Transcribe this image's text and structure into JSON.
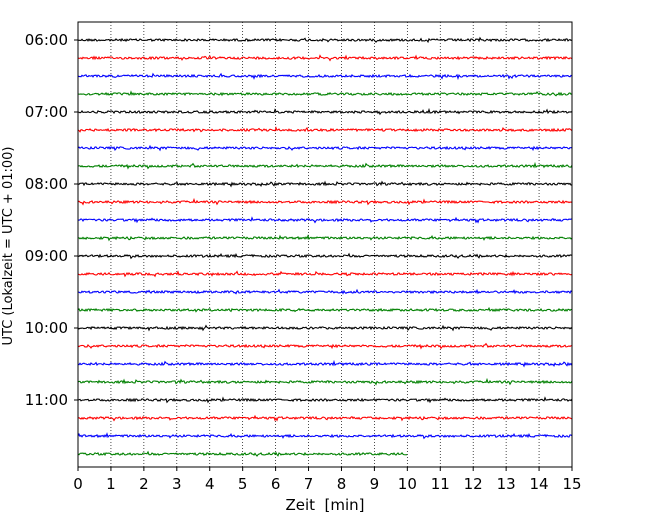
{
  "chart_data": {
    "type": "line",
    "title": "",
    "xlabel": "Zeit  [min]",
    "ylabel": "UTC (Lokalzeit = UTC + 01:00)",
    "xlim": [
      0,
      15
    ],
    "x_ticks": [
      "0",
      "1",
      "2",
      "3",
      "4",
      "5",
      "6",
      "7",
      "8",
      "9",
      "10",
      "11",
      "12",
      "13",
      "14",
      "15"
    ],
    "y_tick_labels": [
      "06:00",
      "07:00",
      "08:00",
      "09:00",
      "10:00",
      "11:00"
    ],
    "trace_interval_min": 15,
    "grid": "vertical-dotted",
    "colors": [
      "#000000",
      "#ff0000",
      "#0000ff",
      "#008000"
    ],
    "traces": [
      {
        "start": "06:00",
        "end_min": 15
      },
      {
        "start": "06:15",
        "end_min": 15
      },
      {
        "start": "06:30",
        "end_min": 15
      },
      {
        "start": "06:45",
        "end_min": 15
      },
      {
        "start": "07:00",
        "end_min": 15
      },
      {
        "start": "07:15",
        "end_min": 15
      },
      {
        "start": "07:30",
        "end_min": 15
      },
      {
        "start": "07:45",
        "end_min": 15
      },
      {
        "start": "08:00",
        "end_min": 15
      },
      {
        "start": "08:15",
        "end_min": 15
      },
      {
        "start": "08:30",
        "end_min": 15
      },
      {
        "start": "08:45",
        "end_min": 15
      },
      {
        "start": "09:00",
        "end_min": 15
      },
      {
        "start": "09:15",
        "end_min": 15
      },
      {
        "start": "09:30",
        "end_min": 15
      },
      {
        "start": "09:45",
        "end_min": 15
      },
      {
        "start": "10:00",
        "end_min": 15
      },
      {
        "start": "10:15",
        "end_min": 15
      },
      {
        "start": "10:30",
        "end_min": 15
      },
      {
        "start": "10:45",
        "end_min": 15
      },
      {
        "start": "11:00",
        "end_min": 15
      },
      {
        "start": "11:15",
        "end_min": 15
      },
      {
        "start": "11:30",
        "end_min": 15
      },
      {
        "start": "11:45",
        "end_min": 10
      }
    ]
  }
}
